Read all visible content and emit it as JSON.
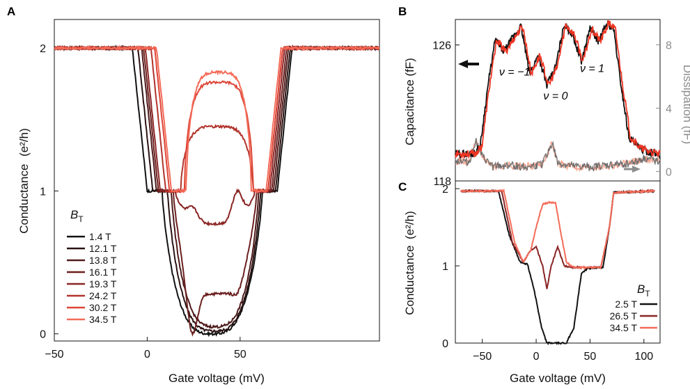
{
  "panels": {
    "a": "A",
    "b": "B",
    "c": "C"
  },
  "colors": {
    "axis": "#111111",
    "gray": "#8c8c8c",
    "capacitance_black": "#111111",
    "capacitance_red": "#ee3524",
    "dissipation_gray": "#6e6e6e",
    "dissipation_salmon": "#f4a08a"
  },
  "chart_data": [
    {
      "panel": "A",
      "type": "line",
      "xlabel": "Gate voltage (mV)",
      "ylabel_prefix": "Conductance",
      "ylabel_unit": "(e²/h)",
      "xlim": [
        -50,
        125
      ],
      "ylim": [
        -0.05,
        2.2
      ],
      "xticks": [
        -50,
        0,
        50
      ],
      "yticks": [
        0,
        1,
        2
      ],
      "xtick_labels": [
        "−50",
        "0",
        "50"
      ],
      "ytick_labels": [
        "0",
        "1",
        "2"
      ],
      "grid": false,
      "legend": {
        "title_main": "B",
        "title_sub": "T",
        "placement": "bottom-left"
      },
      "series": [
        {
          "name": "1.4 T",
          "color": "#111111",
          "plateau_start": 8,
          "plateau_end": 62,
          "min_left": 26,
          "min_right": 44,
          "mid": 0.0,
          "dip": 0.0,
          "peak_l": 0.0,
          "peak_r": 0.0
        },
        {
          "name": "12.1 T",
          "color": "#2b1212",
          "plateau_start": 11,
          "plateau_end": 61,
          "min_left": 28,
          "min_right": 40,
          "mid": 0.02,
          "dip": 0.02,
          "peak_l": 0.02,
          "peak_r": 0.02
        },
        {
          "name": "13.8 T",
          "color": "#4e1a1a",
          "plateau_start": 13,
          "plateau_end": 60,
          "min_left": 30,
          "min_right": 38,
          "mid": 0.05,
          "dip": 0.05,
          "peak_l": 0.05,
          "peak_r": 0.05
        },
        {
          "name": "16.1 T",
          "color": "#6b1f1f",
          "plateau_start": 14,
          "plateau_end": 59,
          "min_left": 31,
          "min_right": 36,
          "mid": 0.28,
          "dip": 0.28,
          "peak_l": 0.55,
          "peak_r": 0.9
        },
        {
          "name": "19.3 T",
          "color": "#8a2424",
          "plateau_start": 15,
          "plateau_end": 58,
          "min_left": 32,
          "min_right": 35,
          "mid": 0.77,
          "dip": 0.77,
          "peak_l": 1.1,
          "peak_r": 1.24
        },
        {
          "name": "24.2 T",
          "color": "#b1332c",
          "plateau_start": 18,
          "plateau_end": 57,
          "min_left": 26,
          "min_right": 44,
          "mid": 1.45,
          "dip": 1.42,
          "peak_l": 1.48,
          "peak_r": 1.55
        },
        {
          "name": "30.2 T",
          "color": "#dd4638",
          "plateau_start": 20,
          "plateau_end": 57,
          "min_left": 26,
          "min_right": 44,
          "mid": 1.76,
          "dip": 1.74,
          "peak_l": 1.8,
          "peak_r": 1.8
        },
        {
          "name": "34.5 T",
          "color": "#f46b58",
          "plateau_start": 21,
          "plateau_end": 56,
          "min_left": 26,
          "min_right": 44,
          "mid": 1.83,
          "dip": 1.83,
          "peak_l": 1.84,
          "peak_r": 1.85
        }
      ]
    },
    {
      "panel": "B",
      "type": "line",
      "xlabel": "",
      "ylabel": "Capacitance (fF)",
      "ylabel_right": "Dissipation (fF)",
      "xlim": [
        -75,
        115
      ],
      "ylim_left": [
        118,
        127.5
      ],
      "ylim_right": [
        -0.6,
        9.6
      ],
      "yticks_left": [
        118,
        126
      ],
      "ytick_labels_left": [
        "118",
        "126"
      ],
      "yticks_right": [
        0,
        4,
        8
      ],
      "ytick_labels_right": [
        "0",
        "4",
        "8"
      ],
      "annotations": [
        {
          "label": "ν = −1",
          "x": -20,
          "y": 124.2
        },
        {
          "label": "ν = 0",
          "x": 18,
          "y": 122.8
        },
        {
          "label": "ν = 1",
          "x": 52,
          "y": 124.4
        }
      ],
      "capacitance_points": [
        [
          -75,
          119.6
        ],
        [
          -58,
          119.6
        ],
        [
          -52,
          120.0
        ],
        [
          -45,
          123.5
        ],
        [
          -38,
          126.3
        ],
        [
          -30,
          125.6
        ],
        [
          -22,
          126.4
        ],
        [
          -14,
          127.1
        ],
        [
          -6,
          124.3
        ],
        [
          2,
          125.4
        ],
        [
          10,
          123.6
        ],
        [
          18,
          124.7
        ],
        [
          26,
          127.2
        ],
        [
          34,
          126.6
        ],
        [
          42,
          125.0
        ],
        [
          50,
          127.0
        ],
        [
          58,
          126.2
        ],
        [
          66,
          127.3
        ],
        [
          72,
          126.9
        ],
        [
          78,
          124.0
        ],
        [
          86,
          120.6
        ],
        [
          96,
          119.9
        ],
        [
          115,
          119.5
        ]
      ],
      "dissipation_points": [
        [
          -75,
          0.7
        ],
        [
          -62,
          0.6
        ],
        [
          -56,
          2.0
        ],
        [
          -50,
          0.9
        ],
        [
          -40,
          0.3
        ],
        [
          -25,
          0.4
        ],
        [
          -10,
          0.3
        ],
        [
          5,
          0.4
        ],
        [
          15,
          1.8
        ],
        [
          20,
          0.5
        ],
        [
          35,
          0.3
        ],
        [
          55,
          0.3
        ],
        [
          70,
          0.4
        ],
        [
          85,
          0.5
        ],
        [
          100,
          0.8
        ],
        [
          115,
          0.7
        ]
      ]
    },
    {
      "panel": "C",
      "type": "line",
      "xlabel": "Gate voltage (mV)",
      "ylabel_prefix": "Conductance",
      "ylabel_unit": "(e²/h)",
      "xlim": [
        -75,
        115
      ],
      "ylim": [
        0,
        2.1
      ],
      "xticks": [
        -50,
        0,
        50,
        100
      ],
      "xtick_labels": [
        "−50",
        "0",
        "50",
        "100"
      ],
      "yticks": [
        0,
        1,
        2
      ],
      "ytick_labels": [
        "0",
        "1",
        "2"
      ],
      "legend": {
        "title_main": "B",
        "title_sub": "T",
        "placement": "bottom-right"
      },
      "series": [
        {
          "name": "2.5 T",
          "color": "#111111",
          "points": [
            [
              -70,
              1.97
            ],
            [
              -35,
              1.97
            ],
            [
              -25,
              1.4
            ],
            [
              -15,
              1.05
            ],
            [
              -8,
              1.02
            ],
            [
              -2,
              0.7
            ],
            [
              5,
              0.2
            ],
            [
              10,
              0.0
            ],
            [
              28,
              0.0
            ],
            [
              35,
              0.2
            ],
            [
              42,
              0.9
            ],
            [
              48,
              0.97
            ],
            [
              62,
              0.98
            ],
            [
              68,
              1.5
            ],
            [
              72,
              1.95
            ],
            [
              110,
              1.97
            ]
          ]
        },
        {
          "name": "26.5 T",
          "color": "#8a2424",
          "points": [
            [
              -70,
              1.97
            ],
            [
              -32,
              1.97
            ],
            [
              -22,
              1.3
            ],
            [
              -12,
              1.05
            ],
            [
              -5,
              1.2
            ],
            [
              0,
              1.25
            ],
            [
              6,
              1.0
            ],
            [
              10,
              0.7
            ],
            [
              14,
              1.0
            ],
            [
              20,
              1.25
            ],
            [
              26,
              1.0
            ],
            [
              34,
              0.98
            ],
            [
              60,
              0.98
            ],
            [
              68,
              1.5
            ],
            [
              72,
              1.95
            ],
            [
              110,
              1.97
            ]
          ]
        },
        {
          "name": "34.5 T",
          "color": "#f46b58",
          "points": [
            [
              -70,
              1.97
            ],
            [
              -30,
              1.97
            ],
            [
              -20,
              1.3
            ],
            [
              -12,
              1.05
            ],
            [
              -5,
              1.2
            ],
            [
              0,
              1.5
            ],
            [
              6,
              1.8
            ],
            [
              12,
              1.82
            ],
            [
              18,
              1.82
            ],
            [
              22,
              1.5
            ],
            [
              28,
              1.05
            ],
            [
              34,
              0.98
            ],
            [
              60,
              0.98
            ],
            [
              68,
              1.5
            ],
            [
              72,
              1.95
            ],
            [
              110,
              1.97
            ]
          ]
        }
      ]
    }
  ]
}
